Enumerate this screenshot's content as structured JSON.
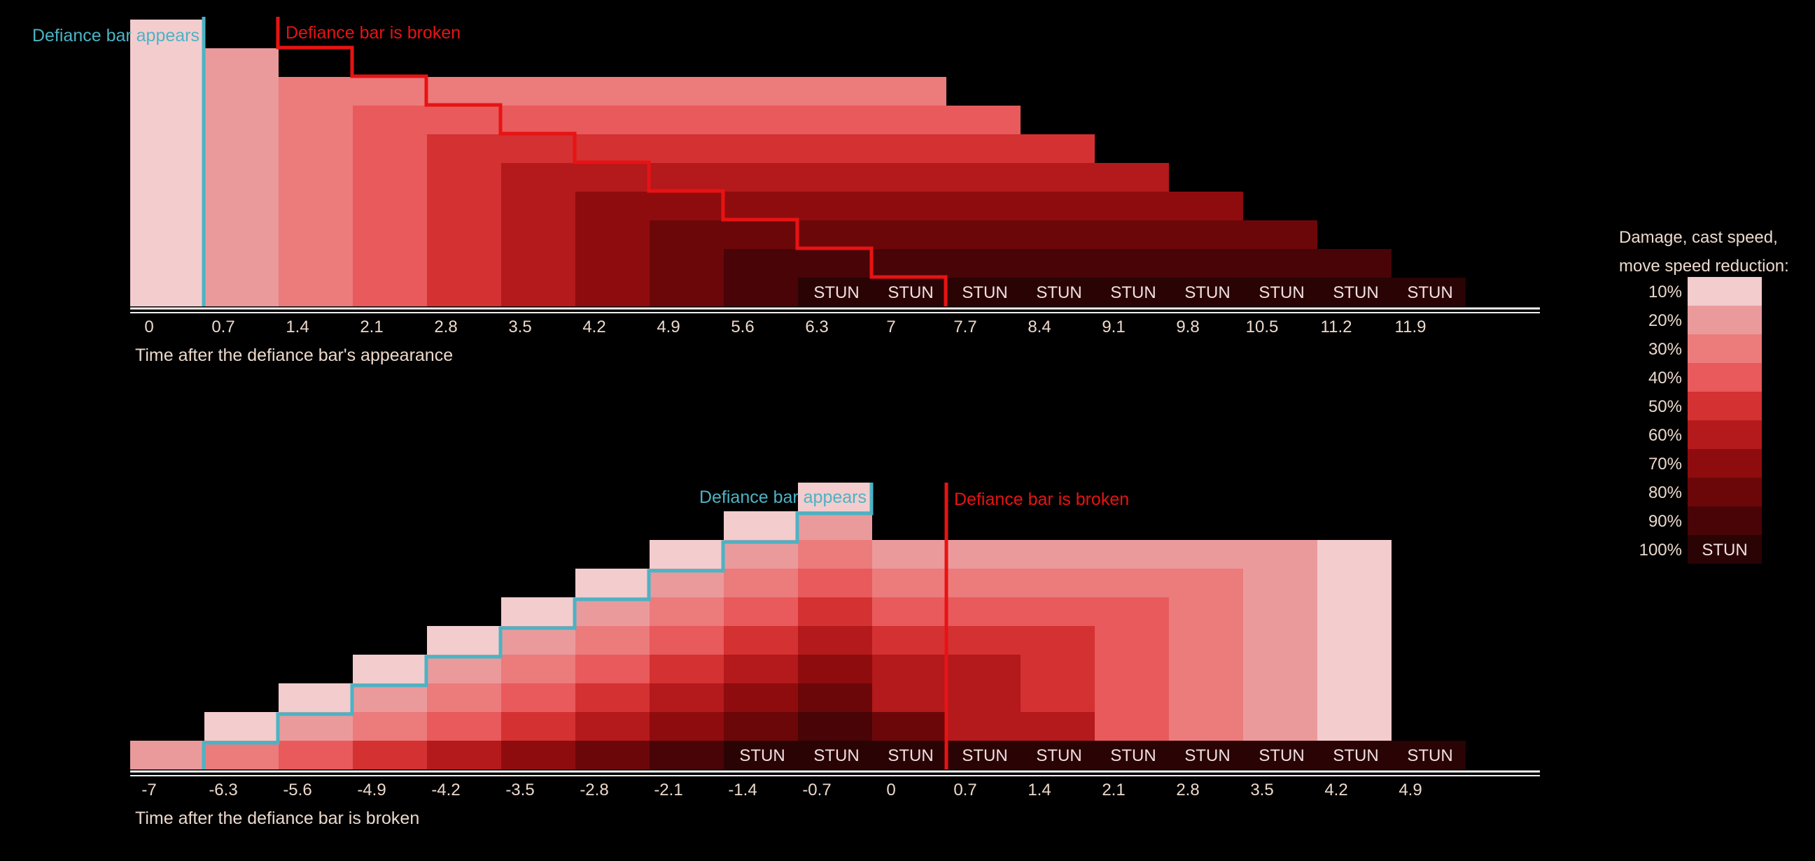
{
  "palette": {
    "levels": [
      "#f3ccce",
      "#eb9a9c",
      "#ec7b7c",
      "#e85a5c",
      "#d43133",
      "#b4191c",
      "#8f0c0e",
      "#6c0709",
      "#480406",
      "#2a0305"
    ],
    "stun_text_light": "#f0e0e0",
    "stun_text_dark": "#222222",
    "appear_line": "#4bb3c4",
    "broken_line": "#e81313",
    "tick_text": "#ecd9cc",
    "axis_line": "#f0f0f0"
  },
  "chart_data": [
    {
      "type": "heatmap",
      "name": "top",
      "xlabel": "Time after the defiance bar's appearance",
      "tick_labels": [
        "0",
        "0.7",
        "1.4",
        "2.1",
        "2.8",
        "3.5",
        "4.2",
        "4.9",
        "5.6",
        "6.3",
        "7",
        "7.7",
        "8.4",
        "9.1",
        "9.8",
        "10.5",
        "11.2",
        "11.9"
      ],
      "rows": 10,
      "description_of_values": "Each column lists stacked reduction levels from the bottom row upward (1 = 10% ... 9 = 90%, 10 = 100% STUN)",
      "columns": [
        [
          1,
          1,
          1,
          1,
          1,
          1,
          1,
          1,
          1,
          1
        ],
        [
          2,
          2,
          2,
          2,
          2,
          2,
          2,
          2,
          2
        ],
        [
          3,
          3,
          3,
          3,
          3,
          3,
          3,
          3
        ],
        [
          4,
          4,
          4,
          4,
          4,
          4,
          4,
          3
        ],
        [
          5,
          5,
          5,
          5,
          5,
          5,
          4,
          3
        ],
        [
          6,
          6,
          6,
          6,
          6,
          5,
          4,
          3
        ],
        [
          7,
          7,
          7,
          7,
          6,
          5,
          4,
          3
        ],
        [
          8,
          8,
          8,
          7,
          6,
          5,
          4,
          3
        ],
        [
          9,
          9,
          8,
          7,
          6,
          5,
          4,
          3
        ],
        [
          10,
          9,
          8,
          7,
          6,
          5,
          4,
          3
        ],
        [
          10,
          9,
          8,
          7,
          6,
          5,
          4,
          3
        ],
        [
          10,
          9,
          8,
          7,
          6,
          5,
          4
        ],
        [
          10,
          9,
          8,
          7,
          6,
          5
        ],
        [
          10,
          9,
          8,
          7,
          6
        ],
        [
          10,
          9,
          8,
          7
        ],
        [
          10,
          9,
          8
        ],
        [
          10,
          9
        ],
        [
          10
        ]
      ],
      "stun_label": "STUN",
      "annotations": {
        "appears": "Defiance bar appears",
        "broken": "Defiance bar is broken"
      }
    },
    {
      "type": "heatmap",
      "name": "bottom",
      "xlabel": "Time after the defiance bar is broken",
      "tick_labels": [
        "-7",
        "-6.3",
        "-5.6",
        "-4.9",
        "-4.2",
        "-3.5",
        "-2.8",
        "-2.1",
        "-1.4",
        "-0.7",
        "0",
        "0.7",
        "1.4",
        "2.1",
        "2.8",
        "3.5",
        "4.2",
        "4.9"
      ],
      "rows": 10,
      "columns": [
        [
          2
        ],
        [
          3,
          1
        ],
        [
          4,
          2,
          1
        ],
        [
          5,
          3,
          2,
          1
        ],
        [
          6,
          4,
          3,
          2,
          1
        ],
        [
          7,
          5,
          4,
          3,
          2,
          1
        ],
        [
          8,
          6,
          5,
          4,
          3,
          2,
          1
        ],
        [
          9,
          7,
          6,
          5,
          4,
          3,
          2,
          1
        ],
        [
          10,
          8,
          7,
          6,
          5,
          4,
          3,
          2,
          1
        ],
        [
          10,
          9,
          8,
          7,
          6,
          5,
          4,
          3,
          2,
          1
        ],
        [
          10,
          8,
          6,
          6,
          5,
          4,
          3,
          2
        ],
        [
          10,
          6,
          6,
          6,
          5,
          4,
          3,
          2
        ],
        [
          10,
          6,
          5,
          5,
          5,
          4,
          3,
          2
        ],
        [
          10,
          4,
          4,
          4,
          4,
          4,
          3,
          2
        ],
        [
          10,
          3,
          3,
          3,
          3,
          3,
          3,
          2
        ],
        [
          10,
          2,
          2,
          2,
          2,
          2,
          2,
          2
        ],
        [
          10,
          1,
          1,
          1,
          1,
          1,
          1,
          1
        ],
        [
          10
        ]
      ],
      "stun_label": "STUN",
      "annotations": {
        "appears": "Defiance bar appears",
        "broken": "Defiance bar is broken"
      }
    }
  ],
  "legend": {
    "title_line1": "Damage, cast speed,",
    "title_line2": "move speed reduction:",
    "items": [
      {
        "label": "10%",
        "level": 1
      },
      {
        "label": "20%",
        "level": 2
      },
      {
        "label": "30%",
        "level": 3
      },
      {
        "label": "40%",
        "level": 4
      },
      {
        "label": "50%",
        "level": 5
      },
      {
        "label": "60%",
        "level": 6
      },
      {
        "label": "70%",
        "level": 7
      },
      {
        "label": "80%",
        "level": 8
      },
      {
        "label": "90%",
        "level": 9
      },
      {
        "label": "100%",
        "level": 10,
        "cell_text": "STUN"
      }
    ]
  }
}
